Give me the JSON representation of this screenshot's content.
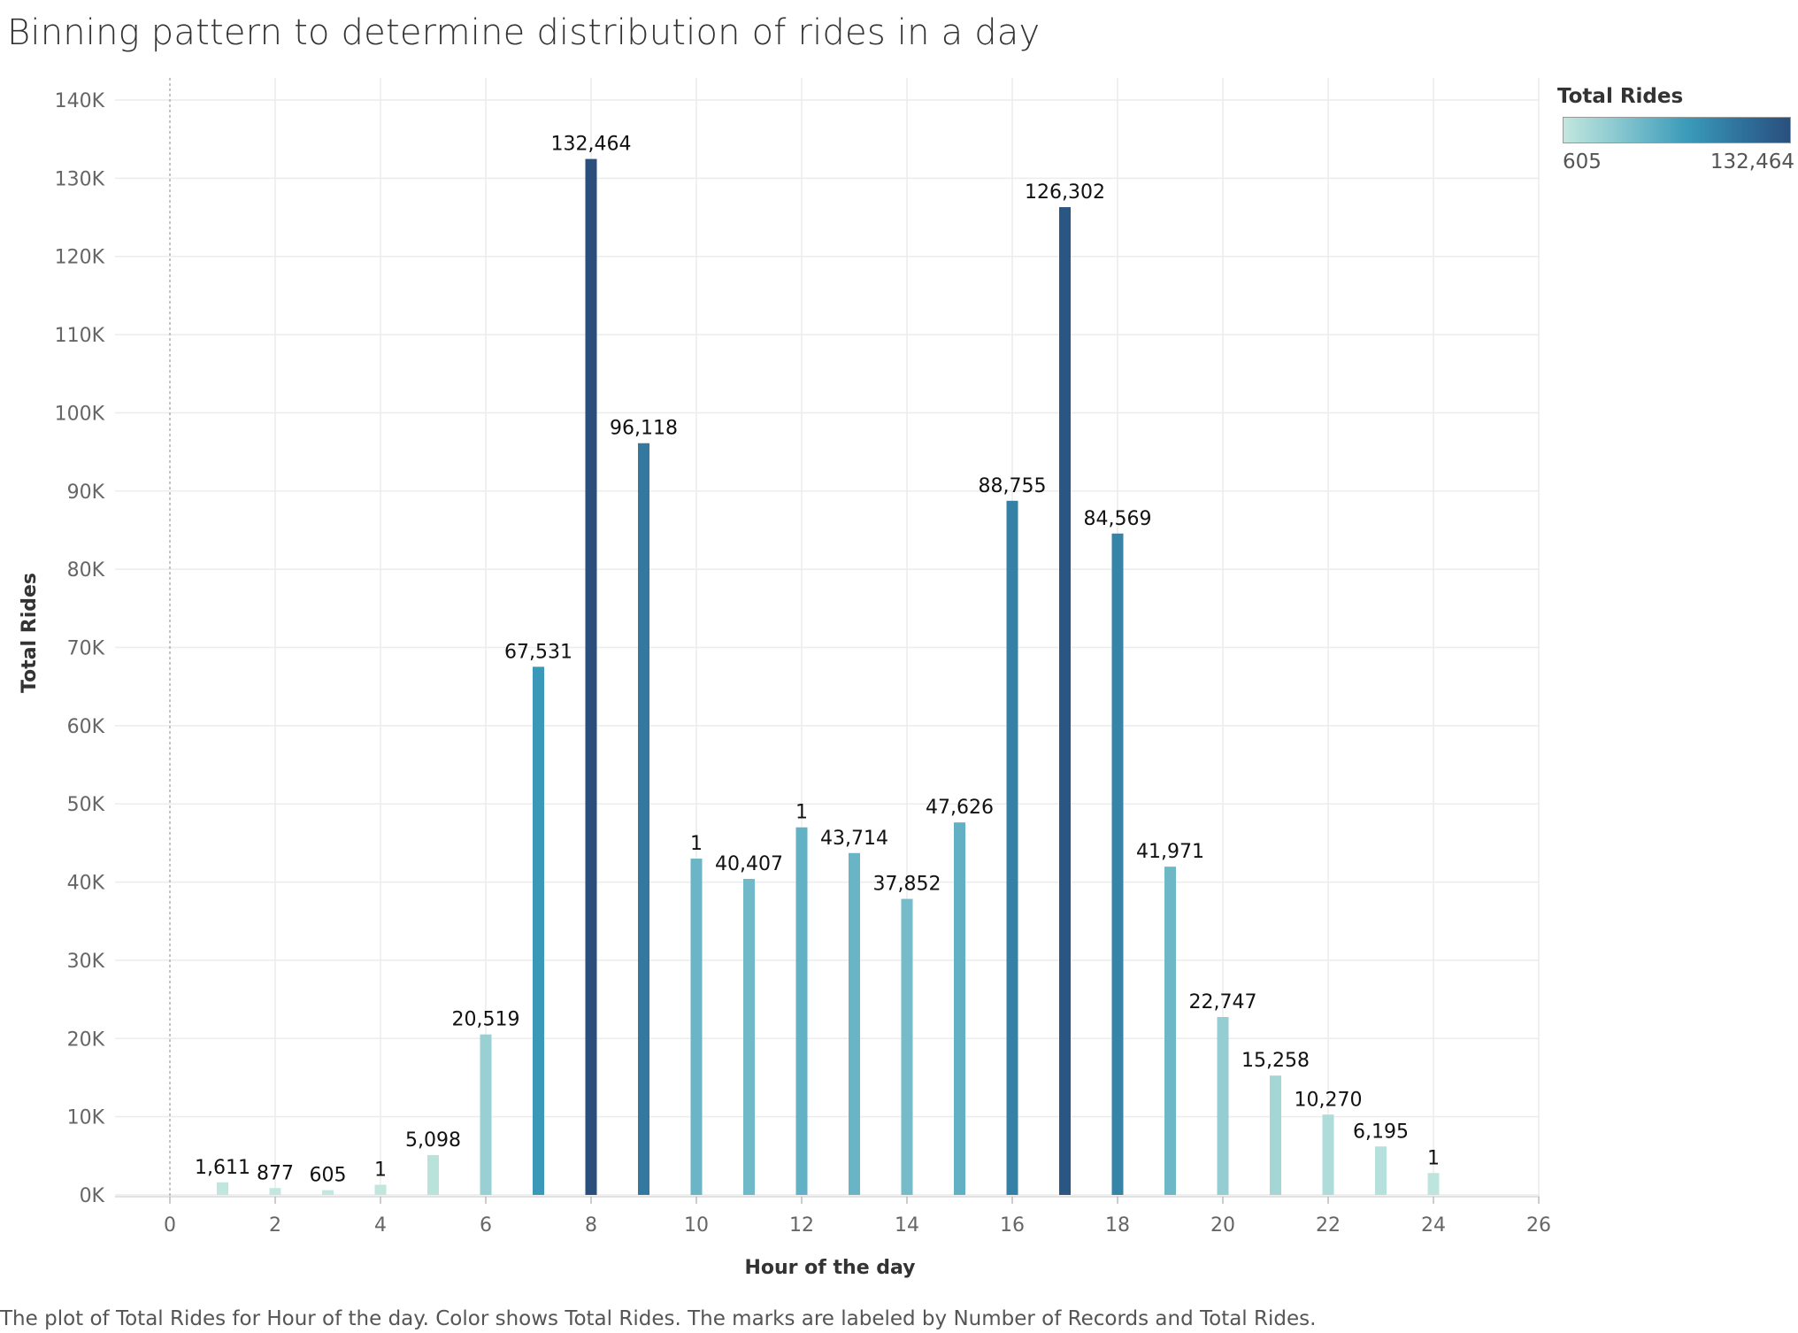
{
  "title": "Binning pattern to determine distribution of rides in a day",
  "caption": "The plot of Total Rides for Hour of the day.  Color shows Total Rides.  The marks are labeled by Number of Records and Total Rides.",
  "legend": {
    "title": "Total Rides",
    "min_label": "605",
    "max_label": "132,464",
    "color_low": "#c2e7de",
    "color_high": "#2a4f7d"
  },
  "chart_data": {
    "type": "bar",
    "title": "Binning pattern to determine distribution of rides in a day",
    "xlabel": "Hour of the day",
    "ylabel": "Total Rides",
    "xlim": [
      -1,
      26
    ],
    "ylim": [
      0,
      140000
    ],
    "grid": true,
    "legend_position": "top-right",
    "x_ticks": [
      0,
      2,
      4,
      6,
      8,
      10,
      12,
      14,
      16,
      18,
      20,
      22,
      24,
      26
    ],
    "x_tick_labels": [
      "0",
      "2",
      "4",
      "6",
      "8",
      "10",
      "12",
      "14",
      "16",
      "18",
      "20",
      "22",
      "24",
      "26"
    ],
    "y_ticks": [
      0,
      10000,
      20000,
      30000,
      40000,
      50000,
      60000,
      70000,
      80000,
      90000,
      100000,
      110000,
      120000,
      130000,
      140000
    ],
    "y_tick_labels": [
      "0K",
      "10K",
      "20K",
      "30K",
      "40K",
      "50K",
      "60K",
      "70K",
      "80K",
      "90K",
      "100K",
      "110K",
      "120K",
      "130K",
      "140K"
    ],
    "bars": [
      {
        "x": 1,
        "value": 1611,
        "label": "1,611"
      },
      {
        "x": 2,
        "value": 877,
        "label": "877"
      },
      {
        "x": 3,
        "value": 605,
        "label": "605"
      },
      {
        "x": 4,
        "value": 1300,
        "label": "1"
      },
      {
        "x": 5,
        "value": 5098,
        "label": "5,098"
      },
      {
        "x": 6,
        "value": 20519,
        "label": "20,519"
      },
      {
        "x": 7,
        "value": 67531,
        "label": "67,531"
      },
      {
        "x": 8,
        "value": 132464,
        "label": "132,464"
      },
      {
        "x": 9,
        "value": 96118,
        "label": "96,118"
      },
      {
        "x": 10,
        "value": 43000,
        "label": "1"
      },
      {
        "x": 11,
        "value": 40407,
        "label": "40,407"
      },
      {
        "x": 12,
        "value": 47000,
        "label": "1"
      },
      {
        "x": 13,
        "value": 43714,
        "label": "43,714"
      },
      {
        "x": 14,
        "value": 37852,
        "label": "37,852"
      },
      {
        "x": 15,
        "value": 47626,
        "label": "47,626"
      },
      {
        "x": 16,
        "value": 88755,
        "label": "88,755"
      },
      {
        "x": 17,
        "value": 126302,
        "label": "126,302"
      },
      {
        "x": 18,
        "value": 84569,
        "label": "84,569"
      },
      {
        "x": 19,
        "value": 41971,
        "label": "41,971"
      },
      {
        "x": 20,
        "value": 22747,
        "label": "22,747"
      },
      {
        "x": 21,
        "value": 15258,
        "label": "15,258"
      },
      {
        "x": 22,
        "value": 10270,
        "label": "10,270"
      },
      {
        "x": 23,
        "value": 6195,
        "label": "6,195"
      },
      {
        "x": 24,
        "value": 2800,
        "label": "1"
      }
    ]
  }
}
